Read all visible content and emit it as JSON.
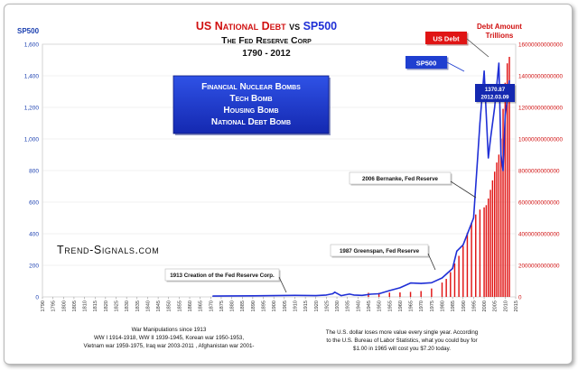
{
  "title": {
    "line1_a": "US National Debt",
    "line1_vs": " vs ",
    "line1_b": "SP500",
    "line2": "The Fed Reserve Corp",
    "line3": "1790 - 2012"
  },
  "axes": {
    "left_label": "SP500",
    "right_label_1": "Debt Amount",
    "right_label_2": "Trillions"
  },
  "bombs_box": [
    "Financial Nuclear Bombs",
    "Tech Bomb",
    "Housing Bomb",
    "National Debt Bomb"
  ],
  "annotations": {
    "sp500_tag": "SP500",
    "usdebt_tag": "US Debt",
    "last_value": "1370.87",
    "last_date": "2012.03.09",
    "bernanke": "2006 Bernanke, Fed Reserve",
    "greenspan": "1987 Greenspan, Fed Reserve",
    "creation": "1913 Creation of the Fed Reserve Corp."
  },
  "brand": "Trend-Signals.com",
  "footer": {
    "wars_title": "War Manipulations since 1913",
    "wars_line1": "WW I 1914-1918, WW II 1939-1945, Korean war 1950-1953,",
    "wars_line2": "Vietnam war 1959-1975, Iraq war 2003-2011 , Afghanistan war 2001-",
    "dollar_line1": "The U.S. dollar loses more value every single year. According",
    "dollar_line2": "to the U.S. Bureau of Labor Statistics, what you could buy for",
    "dollar_line3": "$1.00 in 1965 will cost you $7.20 today."
  },
  "colors": {
    "sp500_line": "#1f2fd6",
    "debt_bars": "#e01414",
    "title_red": "#d01010",
    "box_blue": "#1f3fd0",
    "axis_blue": "#1a3fb0",
    "axis_red": "#d01010"
  },
  "chart_data": {
    "type": "bar+line",
    "x_range": [
      1790,
      2015
    ],
    "x_ticks": [
      1790,
      1795,
      1800,
      1805,
      1810,
      1815,
      1820,
      1825,
      1830,
      1835,
      1840,
      1845,
      1850,
      1855,
      1860,
      1865,
      1870,
      1875,
      1880,
      1885,
      1890,
      1895,
      1900,
      1905,
      1910,
      1915,
      1920,
      1925,
      1930,
      1935,
      1940,
      1945,
      1950,
      1955,
      1960,
      1965,
      1970,
      1975,
      1980,
      1985,
      1990,
      1995,
      2000,
      2005,
      2010,
      2015
    ],
    "y_left": {
      "label": "SP500",
      "range": [
        0,
        1600
      ],
      "ticks": [
        0,
        200,
        400,
        600,
        800,
        1000,
        1200,
        1400,
        1600
      ],
      "tick_labels": [
        "0",
        "200",
        "400",
        "600",
        "800",
        "1,000",
        "1,200",
        "1,400",
        "1,600"
      ]
    },
    "y_right": {
      "label": "Debt Amount Trillions",
      "range": [
        0,
        16000000000000
      ],
      "ticks": [
        0,
        2000000000000,
        4000000000000,
        6000000000000,
        8000000000000,
        10000000000000,
        12000000000000,
        14000000000000,
        16000000000000
      ],
      "tick_labels": [
        "0",
        "2000000000000",
        "4000000000000",
        "6000000000000",
        "8000000000000",
        "10000000000000",
        "12000000000000",
        "14000000000000",
        "16000000000000"
      ]
    },
    "series": [
      {
        "name": "SP500",
        "axis": "left",
        "x": [
          1871,
          1880,
          1890,
          1900,
          1905,
          1910,
          1915,
          1920,
          1925,
          1928,
          1929,
          1932,
          1936,
          1938,
          1942,
          1946,
          1950,
          1955,
          1960,
          1965,
          1970,
          1975,
          1980,
          1985,
          1987,
          1990,
          1995,
          1997,
          1998,
          2000,
          2002,
          2003,
          2005,
          2007,
          2008,
          2009,
          2010,
          2011,
          2012
        ],
        "y": [
          5,
          6,
          7,
          8,
          9,
          10,
          9,
          8,
          12,
          20,
          30,
          8,
          18,
          12,
          10,
          17,
          20,
          40,
          58,
          88,
          85,
          90,
          120,
          180,
          290,
          330,
          500,
          900,
          1100,
          1430,
          880,
          1000,
          1200,
          1480,
          900,
          800,
          1150,
          1250,
          1370
        ]
      },
      {
        "name": "US Debt",
        "axis": "right",
        "x": [
          1945,
          1950,
          1955,
          1960,
          1965,
          1970,
          1975,
          1980,
          1982,
          1984,
          1986,
          1988,
          1990,
          1992,
          1994,
          1996,
          1998,
          2000,
          2001,
          2002,
          2003,
          2004,
          2005,
          2006,
          2007,
          2008,
          2009,
          2010,
          2011,
          2012
        ],
        "y": [
          260000000000,
          257000000000,
          274000000000,
          286000000000,
          317000000000,
          371000000000,
          533000000000,
          908000000000,
          1140000000000,
          1570000000000,
          2120000000000,
          2600000000000,
          3230000000000,
          4060000000000,
          4690000000000,
          5220000000000,
          5530000000000,
          5670000000000,
          5810000000000,
          6230000000000,
          6780000000000,
          7380000000000,
          7930000000000,
          8510000000000,
          9010000000000,
          10020000000000,
          11910000000000,
          13560000000000,
          14790000000000,
          15200000000000
        ]
      }
    ]
  }
}
